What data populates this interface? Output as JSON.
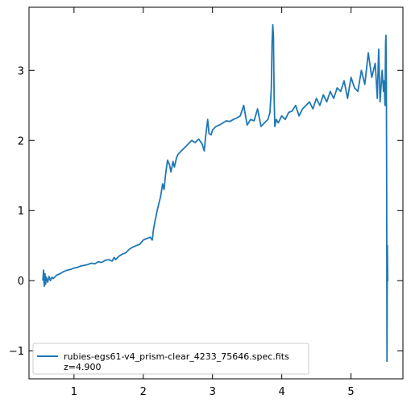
{
  "chart_data": {
    "type": "line",
    "title": "",
    "xlabel": "",
    "ylabel": "",
    "xlim": [
      0.35,
      5.75
    ],
    "ylim": [
      -1.4,
      3.9
    ],
    "xticks": [
      1,
      2,
      3,
      4,
      5
    ],
    "xtick_labels": [
      "1",
      "2",
      "3",
      "4",
      "5"
    ],
    "yticks": [
      -1,
      0,
      1,
      2,
      3
    ],
    "ytick_labels": [
      "−1",
      "0",
      "1",
      "2",
      "3"
    ],
    "grid": false,
    "legend_position": "lower-left",
    "series": [
      {
        "name": "rubies-egs61-v4_prism-clear_4233_75646.spec.fits",
        "color": "#1f77b4",
        "x": [
          0.55,
          0.56,
          0.57,
          0.58,
          0.59,
          0.6,
          0.62,
          0.64,
          0.66,
          0.68,
          0.7,
          0.75,
          0.8,
          0.85,
          0.9,
          0.95,
          1.0,
          1.05,
          1.1,
          1.15,
          1.2,
          1.25,
          1.3,
          1.35,
          1.4,
          1.45,
          1.5,
          1.55,
          1.58,
          1.6,
          1.65,
          1.7,
          1.75,
          1.8,
          1.85,
          1.9,
          1.95,
          2.0,
          2.05,
          2.1,
          2.13,
          2.15,
          2.17,
          2.2,
          2.25,
          2.28,
          2.3,
          2.32,
          2.35,
          2.38,
          2.4,
          2.43,
          2.45,
          2.48,
          2.5,
          2.55,
          2.6,
          2.65,
          2.7,
          2.75,
          2.8,
          2.85,
          2.88,
          2.9,
          2.93,
          2.95,
          2.98,
          3.0,
          3.05,
          3.1,
          3.15,
          3.2,
          3.25,
          3.3,
          3.35,
          3.4,
          3.45,
          3.5,
          3.55,
          3.6,
          3.65,
          3.7,
          3.75,
          3.8,
          3.83,
          3.85,
          3.86,
          3.87,
          3.88,
          3.89,
          3.9,
          3.92,
          3.95,
          4.0,
          4.05,
          4.1,
          4.15,
          4.2,
          4.25,
          4.3,
          4.35,
          4.4,
          4.45,
          4.5,
          4.55,
          4.6,
          4.65,
          4.7,
          4.75,
          4.8,
          4.85,
          4.9,
          4.95,
          5.0,
          5.05,
          5.1,
          5.15,
          5.2,
          5.25,
          5.3,
          5.35,
          5.38,
          5.4,
          5.42,
          5.45,
          5.47,
          5.48,
          5.49,
          5.5,
          5.505,
          5.51,
          5.515,
          5.52,
          5.525,
          5.53,
          5.54
        ],
        "y": [
          0.0,
          0.15,
          -0.08,
          0.1,
          -0.05,
          0.05,
          -0.02,
          0.06,
          0.0,
          0.05,
          0.03,
          0.08,
          0.1,
          0.13,
          0.15,
          0.16,
          0.18,
          0.19,
          0.21,
          0.22,
          0.23,
          0.25,
          0.24,
          0.27,
          0.26,
          0.29,
          0.3,
          0.28,
          0.33,
          0.3,
          0.35,
          0.38,
          0.4,
          0.45,
          0.48,
          0.5,
          0.52,
          0.58,
          0.6,
          0.62,
          0.58,
          0.75,
          0.85,
          1.0,
          1.2,
          1.38,
          1.3,
          1.5,
          1.72,
          1.65,
          1.55,
          1.7,
          1.62,
          1.75,
          1.8,
          1.85,
          1.9,
          1.95,
          2.0,
          1.97,
          2.02,
          1.95,
          1.85,
          2.05,
          2.3,
          2.1,
          2.08,
          2.15,
          2.2,
          2.22,
          2.25,
          2.28,
          2.27,
          2.3,
          2.32,
          2.35,
          2.5,
          2.22,
          2.3,
          2.28,
          2.45,
          2.2,
          2.25,
          2.3,
          2.4,
          2.75,
          3.4,
          3.65,
          3.5,
          2.6,
          2.2,
          2.3,
          2.25,
          2.35,
          2.3,
          2.4,
          2.42,
          2.5,
          2.35,
          2.45,
          2.5,
          2.55,
          2.45,
          2.6,
          2.5,
          2.65,
          2.55,
          2.7,
          2.6,
          2.75,
          2.7,
          2.85,
          2.6,
          2.9,
          2.75,
          2.7,
          3.0,
          2.8,
          3.25,
          2.9,
          3.1,
          2.6,
          3.3,
          2.55,
          3.0,
          2.7,
          2.85,
          2.5,
          3.4,
          3.5,
          2.9,
          1.5,
          -1.15,
          0.5,
          0.0,
          0.0
        ]
      }
    ],
    "legend_entries": [
      "rubies-egs61-v4_prism-clear_4233_75646.spec.fits",
      "z=4.900"
    ]
  }
}
